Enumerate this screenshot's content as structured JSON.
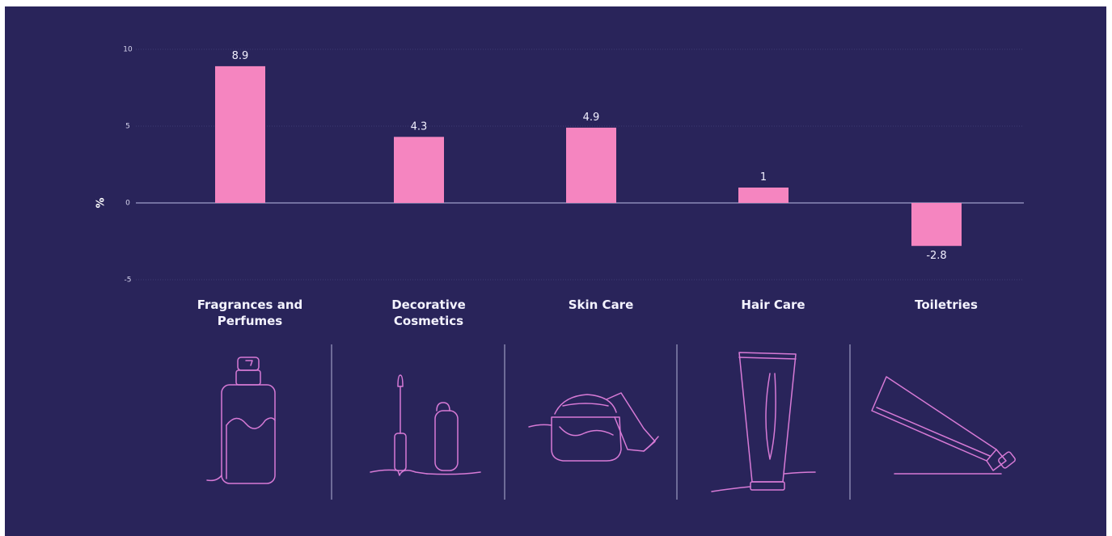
{
  "colors": {
    "background": "#29245a",
    "bar": "#f585c0",
    "illustration": "#d77ad6"
  },
  "chart_data": {
    "type": "bar",
    "categories": [
      "Fragrances and Perfumes",
      "Decorative Cosmetics",
      "Skin Care",
      "Hair Care",
      "Toiletries"
    ],
    "category_lines": [
      [
        "Fragrances and",
        "Perfumes"
      ],
      [
        "Decorative",
        "Cosmetics"
      ],
      [
        "Skin Care"
      ],
      [
        "Hair Care"
      ],
      [
        "Toiletries"
      ]
    ],
    "values": [
      8.9,
      4.3,
      4.9,
      1,
      -2.8
    ],
    "value_labels": [
      "8.9",
      "4.3",
      "4.9",
      "1",
      "-2.8"
    ],
    "ylabel": "%",
    "ylim": [
      -5,
      10
    ],
    "yticks": [
      10,
      5,
      0,
      -5
    ],
    "grid": true,
    "legend": "none"
  },
  "illustrations": [
    "perfume-bottle-icon",
    "mascara-and-bottle-icon",
    "cream-jar-icon",
    "hair-care-tube-icon",
    "toiletry-tube-icon"
  ]
}
